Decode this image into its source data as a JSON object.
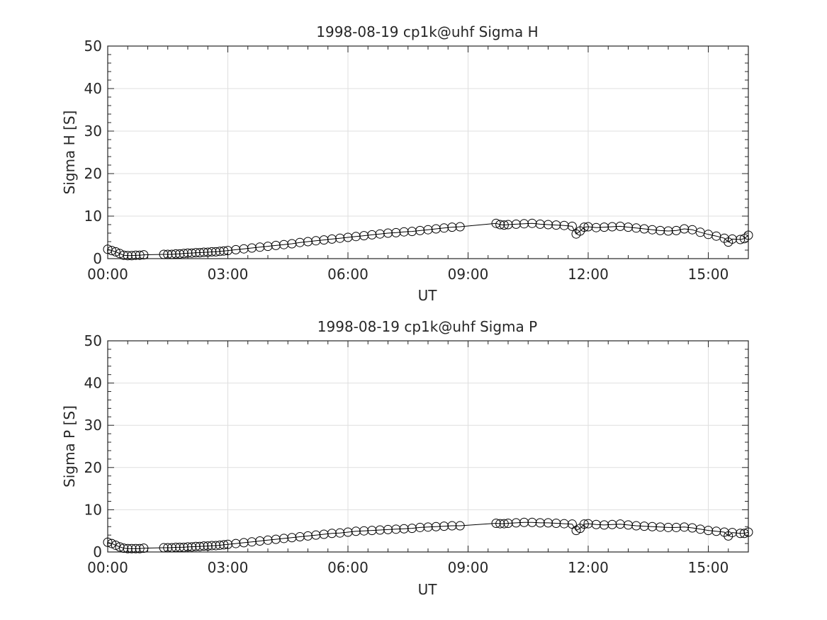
{
  "chart_data": [
    {
      "type": "line",
      "title": "1998-08-19  cp1k@uhf Sigma H",
      "xlabel": "UT",
      "ylabel": "Sigma H [S]",
      "xlim": [
        0,
        16
      ],
      "ylim": [
        0,
        50
      ],
      "x_ticks": [
        "00:00",
        "03:00",
        "06:00",
        "09:00",
        "12:00",
        "15:00"
      ],
      "y_ticks": [
        "0",
        "10",
        "20",
        "30",
        "40",
        "50"
      ],
      "grid": true,
      "marker": "open-circle",
      "series": [
        {
          "x": [
            0.0,
            0.1,
            0.2,
            0.3,
            0.4,
            0.5,
            0.6,
            0.7,
            0.8,
            0.9,
            1.4,
            1.5,
            1.6,
            1.7,
            1.8,
            1.9,
            2.0,
            2.1,
            2.2,
            2.3,
            2.4,
            2.5,
            2.6,
            2.7,
            2.8,
            2.9,
            3.0,
            3.2,
            3.4,
            3.6,
            3.8,
            4.0,
            4.2,
            4.4,
            4.6,
            4.8,
            5.0,
            5.2,
            5.4,
            5.6,
            5.8,
            6.0,
            6.2,
            6.4,
            6.6,
            6.8,
            7.0,
            7.2,
            7.4,
            7.6,
            7.8,
            8.0,
            8.2,
            8.4,
            8.6,
            8.8,
            9.7,
            9.8,
            9.9,
            10.0,
            10.2,
            10.4,
            10.6,
            10.8,
            11.0,
            11.2,
            11.4,
            11.6,
            11.7,
            11.8,
            11.9,
            12.0,
            12.2,
            12.4,
            12.6,
            12.8,
            13.0,
            13.2,
            13.4,
            13.6,
            13.8,
            14.0,
            14.2,
            14.4,
            14.6,
            14.8,
            15.0,
            15.2,
            15.4,
            15.5,
            15.6,
            15.8,
            15.9,
            16.0
          ],
          "y": [
            2.2,
            1.9,
            1.6,
            1.2,
            0.8,
            0.7,
            0.7,
            0.8,
            0.8,
            0.9,
            1.0,
            1.0,
            1.0,
            1.1,
            1.1,
            1.2,
            1.3,
            1.3,
            1.4,
            1.4,
            1.5,
            1.5,
            1.6,
            1.6,
            1.7,
            1.8,
            1.9,
            2.1,
            2.3,
            2.5,
            2.7,
            2.9,
            3.1,
            3.3,
            3.5,
            3.8,
            4.0,
            4.2,
            4.4,
            4.6,
            4.8,
            5.0,
            5.2,
            5.4,
            5.6,
            5.8,
            6.0,
            6.1,
            6.3,
            6.4,
            6.6,
            6.8,
            7.0,
            7.2,
            7.4,
            7.5,
            8.3,
            8.0,
            7.9,
            8.0,
            8.1,
            8.2,
            8.3,
            8.1,
            8.0,
            7.9,
            7.8,
            7.6,
            5.8,
            6.5,
            7.4,
            7.5,
            7.3,
            7.4,
            7.5,
            7.6,
            7.4,
            7.2,
            7.0,
            6.8,
            6.6,
            6.5,
            6.6,
            7.0,
            6.8,
            6.2,
            5.7,
            5.3,
            4.8,
            3.9,
            4.6,
            4.5,
            4.7,
            5.5
          ]
        }
      ]
    },
    {
      "type": "line",
      "title": "1998-08-19  cp1k@uhf Sigma P",
      "xlabel": "UT",
      "ylabel": "Sigma P [S]",
      "xlim": [
        0,
        16
      ],
      "ylim": [
        0,
        50
      ],
      "x_ticks": [
        "00:00",
        "03:00",
        "06:00",
        "09:00",
        "12:00",
        "15:00"
      ],
      "y_ticks": [
        "0",
        "10",
        "20",
        "30",
        "40",
        "50"
      ],
      "grid": true,
      "marker": "open-circle",
      "series": [
        {
          "x": [
            0.0,
            0.1,
            0.2,
            0.3,
            0.4,
            0.5,
            0.6,
            0.7,
            0.8,
            0.9,
            1.4,
            1.5,
            1.6,
            1.7,
            1.8,
            1.9,
            2.0,
            2.1,
            2.2,
            2.3,
            2.4,
            2.5,
            2.6,
            2.7,
            2.8,
            2.9,
            3.0,
            3.2,
            3.4,
            3.6,
            3.8,
            4.0,
            4.2,
            4.4,
            4.6,
            4.8,
            5.0,
            5.2,
            5.4,
            5.6,
            5.8,
            6.0,
            6.2,
            6.4,
            6.6,
            6.8,
            7.0,
            7.2,
            7.4,
            7.6,
            7.8,
            8.0,
            8.2,
            8.4,
            8.6,
            8.8,
            9.7,
            9.8,
            9.9,
            10.0,
            10.2,
            10.4,
            10.6,
            10.8,
            11.0,
            11.2,
            11.4,
            11.6,
            11.7,
            11.8,
            11.9,
            12.0,
            12.2,
            12.4,
            12.6,
            12.8,
            13.0,
            13.2,
            13.4,
            13.6,
            13.8,
            14.0,
            14.2,
            14.4,
            14.6,
            14.8,
            15.0,
            15.2,
            15.4,
            15.5,
            15.6,
            15.8,
            15.9,
            16.0
          ],
          "y": [
            2.3,
            2.0,
            1.6,
            1.2,
            0.9,
            0.8,
            0.8,
            0.8,
            0.8,
            0.9,
            1.0,
            1.0,
            1.0,
            1.1,
            1.1,
            1.1,
            1.2,
            1.2,
            1.3,
            1.3,
            1.4,
            1.4,
            1.5,
            1.5,
            1.6,
            1.7,
            1.8,
            2.0,
            2.2,
            2.4,
            2.6,
            2.8,
            3.0,
            3.2,
            3.4,
            3.6,
            3.8,
            4.0,
            4.2,
            4.4,
            4.5,
            4.7,
            4.9,
            5.0,
            5.1,
            5.2,
            5.3,
            5.4,
            5.5,
            5.6,
            5.8,
            5.9,
            6.0,
            6.1,
            6.2,
            6.2,
            6.8,
            6.7,
            6.7,
            6.8,
            6.9,
            7.0,
            7.0,
            6.9,
            6.9,
            6.8,
            6.7,
            6.6,
            5.1,
            5.6,
            6.6,
            6.7,
            6.5,
            6.4,
            6.5,
            6.6,
            6.4,
            6.2,
            6.1,
            6.0,
            5.9,
            5.8,
            5.8,
            5.9,
            5.7,
            5.4,
            5.1,
            4.9,
            4.7,
            3.8,
            4.6,
            4.4,
            4.4,
            4.7
          ]
        }
      ]
    }
  ]
}
